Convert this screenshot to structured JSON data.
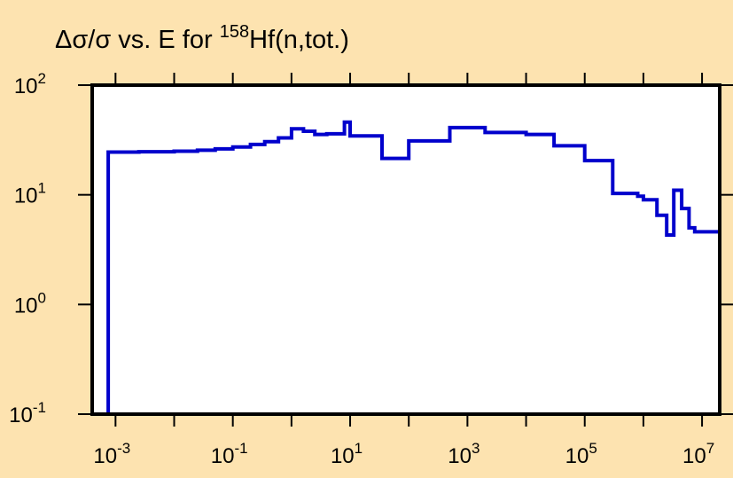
{
  "chart_data": {
    "type": "line",
    "title": {
      "prefix": "Δσ/σ vs. E for ",
      "isotope_mass": "158",
      "suffix": "Hf(n,tot.)"
    },
    "xlabel": "",
    "ylabel": "",
    "x_scale": "log",
    "y_scale": "log",
    "xlim": [
      0.0004,
      20000000
    ],
    "ylim": [
      0.1,
      100
    ],
    "x_ticks": [
      {
        "value": 0.001,
        "base": "10",
        "exp": "-3"
      },
      {
        "value": 0.1,
        "base": "10",
        "exp": "-1"
      },
      {
        "value": 10,
        "base": "10",
        "exp": "1"
      },
      {
        "value": 1000,
        "base": "10",
        "exp": "3"
      },
      {
        "value": 100000,
        "base": "10",
        "exp": "5"
      },
      {
        "value": 10000000,
        "base": "10",
        "exp": "7"
      }
    ],
    "y_ticks": [
      {
        "value": 0.1,
        "base": "10",
        "exp": "-1"
      },
      {
        "value": 1,
        "base": "10",
        "exp": "0"
      },
      {
        "value": 10,
        "base": "10",
        "exp": "1"
      },
      {
        "value": 100,
        "base": "10",
        "exp": "2"
      }
    ],
    "grid": false,
    "series": [
      {
        "color": "#0000cc",
        "step": "post",
        "x": [
          0.00075,
          0.0025,
          0.01,
          0.025,
          0.05,
          0.1,
          0.2,
          0.35,
          0.6,
          1,
          1.6,
          2.5,
          4,
          8,
          10,
          35,
          100,
          500,
          2000,
          10000,
          30000,
          100000,
          300000,
          800000,
          1000000,
          1700000,
          2500000,
          3300000,
          4500000,
          6000000,
          7500000,
          10000000,
          20000000
        ],
        "y": [
          24.5,
          24.7,
          25.0,
          25.5,
          26.2,
          27.3,
          28.8,
          30.5,
          33,
          40,
          38,
          35.5,
          36,
          46,
          34.5,
          21.5,
          31,
          41,
          37,
          35.5,
          28,
          20.5,
          10.3,
          9.7,
          9.0,
          6.5,
          4.3,
          11,
          7.5,
          5.0,
          4.6,
          4.6,
          0.1
        ],
        "start_y": 0.1
      }
    ]
  }
}
